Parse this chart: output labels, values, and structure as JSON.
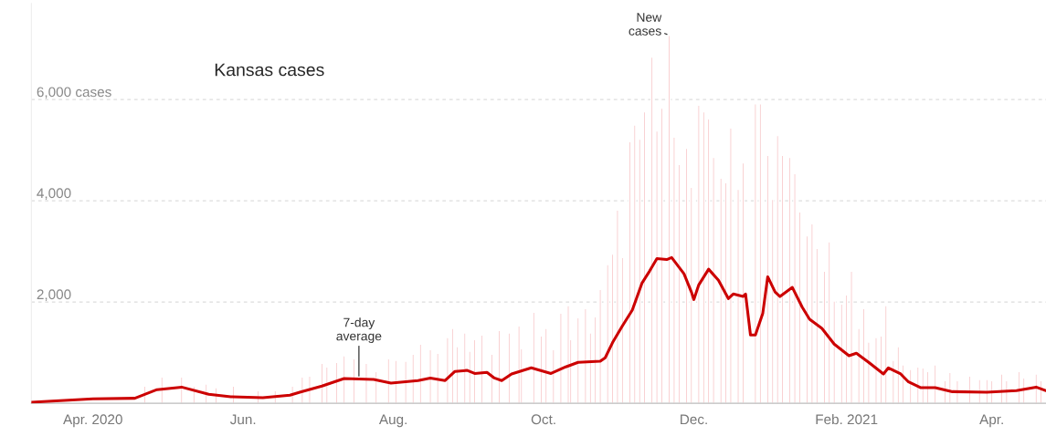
{
  "chart_data": {
    "type": "bar",
    "title": "Kansas cases",
    "xlim": [
      "2020-03-07",
      "2021-04-23"
    ],
    "xticks": [
      {
        "value": "2020-04-01",
        "label": "Apr. 2020"
      },
      {
        "value": "2020-06-01",
        "label": "Jun."
      },
      {
        "value": "2020-08-01",
        "label": "Aug."
      },
      {
        "value": "2020-10-01",
        "label": "Oct."
      },
      {
        "value": "2020-12-01",
        "label": "Dec."
      },
      {
        "value": "2021-02-01",
        "label": "Feb. 2021"
      },
      {
        "value": "2021-04-01",
        "label": "Apr."
      }
    ],
    "ylim": [
      0,
      7900
    ],
    "yticks": [
      {
        "value": 2000,
        "label": "2,000"
      },
      {
        "value": 4000,
        "label": "4,000"
      },
      {
        "value": 6000,
        "label": "6,000 cases"
      }
    ],
    "grid": "y",
    "series": [
      {
        "color": "#f7c4c6",
        "x": [
          "2020-04-22",
          "2020-04-29",
          "2020-05-07",
          "2020-05-12",
          "2020-05-17",
          "2020-05-21",
          "2020-05-28",
          "2020-06-07",
          "2020-06-14",
          "2020-06-21",
          "2020-06-25",
          "2020-06-28",
          "2020-07-03",
          "2020-07-05",
          "2020-07-09",
          "2020-07-12",
          "2020-07-16",
          "2020-07-21",
          "2020-07-25",
          "2020-07-30",
          "2020-08-02",
          "2020-08-06",
          "2020-08-09",
          "2020-08-12",
          "2020-08-16",
          "2020-08-19",
          "2020-08-23",
          "2020-08-25",
          "2020-08-27",
          "2020-08-30",
          "2020-09-01",
          "2020-09-03",
          "2020-09-06",
          "2020-09-10",
          "2020-09-13",
          "2020-09-17",
          "2020-09-21",
          "2020-09-22",
          "2020-09-27",
          "2020-09-30",
          "2020-10-02",
          "2020-10-05",
          "2020-10-08",
          "2020-10-11",
          "2020-10-12",
          "2020-10-15",
          "2020-10-18",
          "2020-10-20",
          "2020-10-22",
          "2020-10-24",
          "2020-10-27",
          "2020-10-29",
          "2020-10-31",
          "2020-11-02",
          "2020-11-05",
          "2020-11-07",
          "2020-11-09",
          "2020-11-11",
          "2020-11-14",
          "2020-11-16",
          "2020-11-18",
          "2020-11-21",
          "2020-11-23",
          "2020-11-25",
          "2020-11-28",
          "2020-11-30",
          "2020-12-03",
          "2020-12-05",
          "2020-12-07",
          "2020-12-09",
          "2020-12-12",
          "2020-12-14",
          "2020-12-16",
          "2020-12-19",
          "2020-12-21",
          "2020-12-26",
          "2020-12-28",
          "2020-12-31",
          "2021-01-02",
          "2021-01-04",
          "2021-01-06",
          "2021-01-09",
          "2021-01-11",
          "2021-01-13",
          "2021-01-16",
          "2021-01-18",
          "2021-01-20",
          "2021-01-23",
          "2021-01-25",
          "2021-01-27",
          "2021-01-30",
          "2021-02-01",
          "2021-02-03",
          "2021-02-06",
          "2021-02-08",
          "2021-02-10",
          "2021-02-13",
          "2021-02-15",
          "2021-02-17",
          "2021-02-20",
          "2021-02-22",
          "2021-02-24",
          "2021-02-27",
          "2021-03-02",
          "2021-03-04",
          "2021-03-06",
          "2021-03-09",
          "2021-03-13",
          "2021-03-15",
          "2021-03-18",
          "2021-03-23",
          "2021-03-27",
          "2021-03-30",
          "2021-04-01",
          "2021-04-05",
          "2021-04-07",
          "2021-04-12",
          "2021-04-14",
          "2021-04-19",
          "2021-04-21"
        ],
        "values": [
          340,
          520,
          520,
          340,
          380,
          310,
          340,
          250,
          250,
          340,
          520,
          540,
          790,
          720,
          810,
          940,
          880,
          790,
          630,
          880,
          850,
          830,
          970,
          1170,
          1060,
          990,
          1300,
          1480,
          1120,
          1390,
          1030,
          1260,
          1350,
          970,
          1440,
          1390,
          1530,
          1080,
          1800,
          1330,
          1480,
          1060,
          1780,
          1930,
          1260,
          1690,
          1870,
          1390,
          1710,
          2250,
          2740,
          2950,
          3820,
          2880,
          5170,
          5500,
          5220,
          5760,
          6840,
          5380,
          5830,
          7270,
          5260,
          4720,
          5040,
          4270,
          5890,
          5760,
          5620,
          4860,
          4450,
          4360,
          5440,
          4230,
          4750,
          5920,
          5920,
          4900,
          4030,
          5290,
          4900,
          4860,
          4540,
          3780,
          3310,
          3550,
          3060,
          2610,
          3190,
          2020,
          1960,
          2140,
          2610,
          1480,
          1870,
          1210,
          1300,
          1330,
          1930,
          850,
          1120,
          760,
          670,
          720,
          700,
          630,
          760,
          450,
          610,
          450,
          540,
          470,
          470,
          450,
          580,
          450,
          630,
          500,
          580,
          450
        ]
      },
      {
        "type": "line",
        "color": "#cc0000",
        "x": [
          "2020-03-07",
          "2020-04-01",
          "2020-04-18",
          "2020-04-27",
          "2020-05-07",
          "2020-05-18",
          "2020-05-27",
          "2020-06-09",
          "2020-06-20",
          "2020-06-24",
          "2020-07-03",
          "2020-07-12",
          "2020-07-24",
          "2020-07-31",
          "2020-08-11",
          "2020-08-16",
          "2020-08-22",
          "2020-08-26",
          "2020-08-31",
          "2020-09-03",
          "2020-09-08",
          "2020-09-11",
          "2020-09-14",
          "2020-09-18",
          "2020-09-26",
          "2020-10-04",
          "2020-10-10",
          "2020-10-15",
          "2020-10-24",
          "2020-10-26",
          "2020-10-29",
          "2020-11-02",
          "2020-11-06",
          "2020-11-10",
          "2020-11-13",
          "2020-11-16",
          "2020-11-20",
          "2020-11-22",
          "2020-11-27",
          "2020-11-30",
          "2020-12-01",
          "2020-12-03",
          "2020-12-07",
          "2020-12-11",
          "2020-12-15",
          "2020-12-17",
          "2020-12-21",
          "2020-12-22",
          "2020-12-24",
          "2020-12-26",
          "2020-12-29",
          "2020-12-31",
          "2021-01-03",
          "2021-01-05",
          "2021-01-10",
          "2021-01-14",
          "2021-01-17",
          "2021-01-22",
          "2021-01-27",
          "2021-02-02",
          "2021-02-05",
          "2021-02-10",
          "2021-02-16",
          "2021-02-18",
          "2021-02-23",
          "2021-02-26",
          "2021-03-03",
          "2021-03-09",
          "2021-03-16",
          "2021-03-30",
          "2021-04-11",
          "2021-04-19",
          "2021-04-23"
        ],
        "values": [
          20,
          90,
          100,
          270,
          320,
          180,
          130,
          110,
          160,
          220,
          340,
          490,
          470,
          400,
          450,
          500,
          450,
          630,
          650,
          590,
          610,
          500,
          450,
          580,
          700,
          590,
          720,
          810,
          830,
          900,
          1200,
          1530,
          1840,
          2380,
          2610,
          2860,
          2840,
          2880,
          2560,
          2200,
          2050,
          2340,
          2650,
          2430,
          2070,
          2160,
          2110,
          2160,
          1350,
          1350,
          1780,
          2500,
          2200,
          2110,
          2290,
          1900,
          1660,
          1480,
          1170,
          940,
          990,
          810,
          580,
          700,
          580,
          430,
          310,
          310,
          230,
          220,
          250,
          320,
          250
        ]
      }
    ],
    "annotations": [
      {
        "text": "7-day average",
        "x": "2020-07-18",
        "y": 490
      },
      {
        "text": "New cases",
        "x": "2020-11-21",
        "y": 7270
      }
    ]
  }
}
